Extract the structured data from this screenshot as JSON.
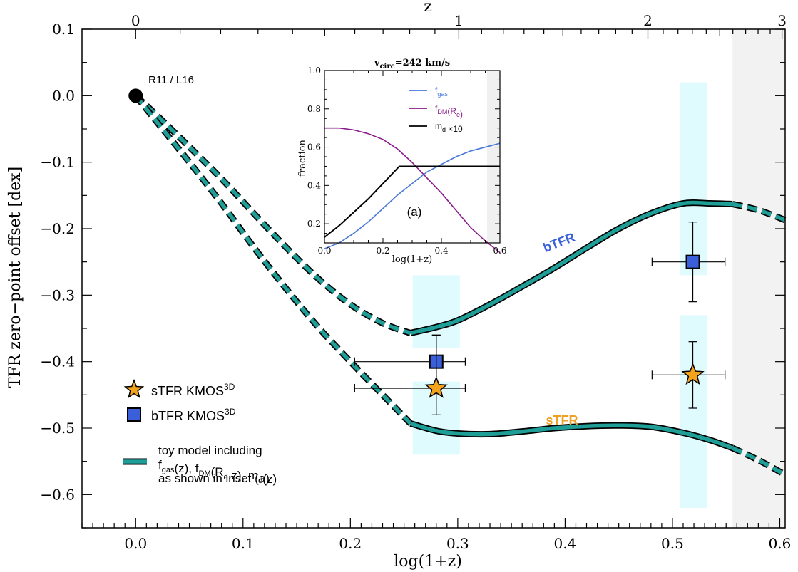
{
  "chart_data": [
    {
      "type": "line",
      "role": "main",
      "xlabel": "log(1+z)",
      "ylabel": "TFR zero−point offset [dex]",
      "top_axis_label": "z",
      "xlim": [
        -0.05,
        0.605
      ],
      "ylim": [
        -0.65,
        0.1
      ],
      "x_ticks": [
        "0.0",
        "0.1",
        "0.2",
        "0.3",
        "0.4",
        "0.5",
        "0.6"
      ],
      "y_ticks": [
        "0.1",
        "0.0",
        "−0.1",
        "−0.2",
        "−0.3",
        "−0.4",
        "−0.5",
        "−0.6"
      ],
      "top_ticks": [
        "0",
        "1",
        "2",
        "3"
      ],
      "shaded_region_x": [
        0.556,
        0.605
      ],
      "reference_point": {
        "label": "R11 / L16",
        "x": 0.0,
        "y": 0.0
      },
      "series": [
        {
          "name": "bTFR",
          "color": "#1f9e98",
          "label_color": "#3a5fd9",
          "x": [
            0.0,
            0.02,
            0.05,
            0.08,
            0.11,
            0.14,
            0.17,
            0.2,
            0.23,
            0.256,
            0.28,
            0.3,
            0.33,
            0.36,
            0.39,
            0.42,
            0.45,
            0.48,
            0.51,
            0.535,
            0.556,
            0.58,
            0.605
          ],
          "y": [
            0.0,
            -0.03,
            -0.077,
            -0.125,
            -0.177,
            -0.228,
            -0.275,
            -0.314,
            -0.342,
            -0.357,
            -0.348,
            -0.338,
            -0.314,
            -0.287,
            -0.259,
            -0.229,
            -0.2,
            -0.177,
            -0.162,
            -0.162,
            -0.163,
            -0.172,
            -0.187
          ],
          "solid_range": [
            0.256,
            0.556
          ]
        },
        {
          "name": "sTFR",
          "color": "#1f9e98",
          "label_color": "#f0a020",
          "x": [
            0.0,
            0.02,
            0.05,
            0.08,
            0.11,
            0.14,
            0.17,
            0.2,
            0.23,
            0.256,
            0.28,
            0.3,
            0.33,
            0.36,
            0.39,
            0.42,
            0.45,
            0.48,
            0.51,
            0.535,
            0.556,
            0.58,
            0.605
          ],
          "y": [
            0.0,
            -0.04,
            -0.1,
            -0.162,
            -0.228,
            -0.29,
            -0.348,
            -0.4,
            -0.45,
            -0.493,
            -0.504,
            -0.508,
            -0.509,
            -0.505,
            -0.5,
            -0.497,
            -0.496,
            -0.498,
            -0.507,
            -0.518,
            -0.53,
            -0.548,
            -0.57
          ],
          "solid_range": [
            0.256,
            0.556
          ]
        }
      ],
      "points": [
        {
          "series": "bTFR KMOS3D",
          "marker": "square",
          "color": "#3a5fd9",
          "x": 0.28,
          "y": -0.4,
          "xerr": [
            0.076,
            0.027
          ],
          "yerr": [
            0.04,
            0.04
          ]
        },
        {
          "series": "sTFR KMOS3D",
          "marker": "star",
          "color": "#f5a31a",
          "x": 0.28,
          "y": -0.44,
          "xerr": [
            0.076,
            0.027
          ],
          "yerr": [
            0.04,
            0.08
          ]
        },
        {
          "series": "bTFR KMOS3D",
          "marker": "square",
          "color": "#3a5fd9",
          "x": 0.519,
          "y": -0.25,
          "xerr": [
            0.038,
            0.03
          ],
          "yerr": [
            0.06,
            0.06
          ]
        },
        {
          "series": "sTFR KMOS3D",
          "marker": "star",
          "color": "#f5a31a",
          "x": 0.519,
          "y": -0.42,
          "xerr": [
            0.038,
            0.03
          ],
          "yerr": [
            0.05,
            0.05
          ]
        }
      ],
      "bands": [
        {
          "x": [
            0.258,
            0.302
          ],
          "y": [
            -0.38,
            -0.27
          ]
        },
        {
          "x": [
            0.258,
            0.302
          ],
          "y": [
            -0.54,
            -0.43
          ]
        },
        {
          "x": [
            0.507,
            0.532
          ],
          "y": [
            -0.27,
            0.02
          ]
        },
        {
          "x": [
            0.507,
            0.532
          ],
          "y": [
            -0.62,
            -0.33
          ]
        }
      ],
      "band_color": "#e0fbfd",
      "legend": {
        "placement": "bottom-left",
        "entries": [
          {
            "label": "sTFR KMOS",
            "sup": "3D",
            "marker": "star"
          },
          {
            "label": "bTFR KMOS",
            "sup": "3D",
            "marker": "square"
          },
          {
            "label_lines": [
              "toy model including",
              "f_gas(z), f_DM(R_e,z), m_d(z)",
              "as shown in inset (a)"
            ],
            "marker": "line"
          }
        ]
      }
    },
    {
      "type": "line",
      "role": "inset",
      "title": "v_circ=242 km/s",
      "panel_label": "(a)",
      "xlabel": "log(1+z)",
      "ylabel": "fraction",
      "xlim": [
        0.0,
        0.6
      ],
      "ylim": [
        0.1,
        1.0
      ],
      "x_ticks": [
        "0.0",
        "0.2",
        "0.4",
        "0.6"
      ],
      "y_ticks": [
        "0.2",
        "0.4",
        "0.6",
        "0.8",
        "1.0"
      ],
      "shaded_region_x": [
        0.556,
        0.6
      ],
      "legend_placement": "top-right",
      "series": [
        {
          "name": "f_gas",
          "color": "#4a78d8",
          "x": [
            0.0,
            0.05,
            0.1,
            0.15,
            0.2,
            0.25,
            0.3,
            0.35,
            0.4,
            0.45,
            0.5,
            0.55,
            0.6
          ],
          "y": [
            0.07,
            0.1,
            0.15,
            0.21,
            0.28,
            0.35,
            0.41,
            0.47,
            0.51,
            0.55,
            0.58,
            0.6,
            0.62
          ]
        },
        {
          "name": "f_DM(R_e)",
          "color": "#8a1a8c",
          "x": [
            0.0,
            0.05,
            0.1,
            0.15,
            0.2,
            0.25,
            0.3,
            0.35,
            0.4,
            0.45,
            0.5,
            0.55,
            0.6
          ],
          "y": [
            0.7,
            0.7,
            0.69,
            0.67,
            0.64,
            0.59,
            0.52,
            0.44,
            0.36,
            0.27,
            0.18,
            0.11,
            0.05
          ]
        },
        {
          "name": "m_d ×10",
          "color": "#000000",
          "x": [
            0.0,
            0.05,
            0.1,
            0.15,
            0.2,
            0.256,
            0.3,
            0.4,
            0.5,
            0.6
          ],
          "y": [
            0.13,
            0.19,
            0.26,
            0.33,
            0.41,
            0.5,
            0.5,
            0.5,
            0.5,
            0.5
          ]
        }
      ]
    }
  ]
}
